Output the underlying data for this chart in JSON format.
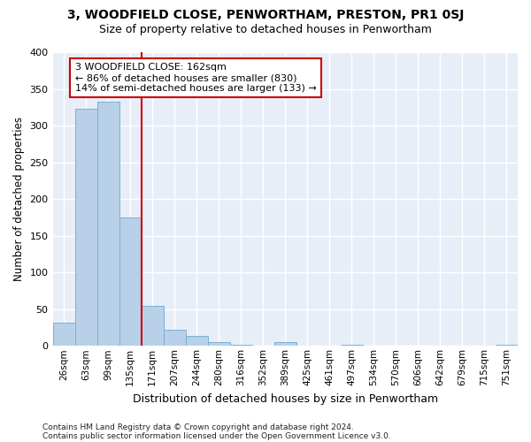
{
  "title": "3, WOODFIELD CLOSE, PENWORTHAM, PRESTON, PR1 0SJ",
  "subtitle": "Size of property relative to detached houses in Penwortham",
  "xlabel": "Distribution of detached houses by size in Penwortham",
  "ylabel": "Number of detached properties",
  "footer1": "Contains HM Land Registry data © Crown copyright and database right 2024.",
  "footer2": "Contains public sector information licensed under the Open Government Licence v3.0.",
  "bar_labels": [
    "26sqm",
    "63sqm",
    "99sqm",
    "135sqm",
    "171sqm",
    "207sqm",
    "244sqm",
    "280sqm",
    "316sqm",
    "352sqm",
    "389sqm",
    "425sqm",
    "461sqm",
    "497sqm",
    "534sqm",
    "570sqm",
    "606sqm",
    "642sqm",
    "679sqm",
    "715sqm",
    "751sqm"
  ],
  "bar_values": [
    32,
    323,
    333,
    175,
    55,
    22,
    13,
    5,
    2,
    0,
    5,
    0,
    0,
    2,
    0,
    0,
    0,
    0,
    0,
    0,
    2
  ],
  "bar_color": "#b8d0e8",
  "bar_edgecolor": "#7bafd4",
  "annotation_line1": "3 WOODFIELD CLOSE: 162sqm",
  "annotation_line2": "← 86% of detached houses are smaller (830)",
  "annotation_line3": "14% of semi-detached houses are larger (133) →",
  "vline_x": 3.5,
  "vline_color": "#cc0000",
  "annotation_box_facecolor": "#ffffff",
  "annotation_box_edgecolor": "#cc0000",
  "background_color": "#e8eef8",
  "grid_color": "#ffffff",
  "fig_facecolor": "#ffffff",
  "ylim": [
    0,
    400
  ],
  "yticks": [
    0,
    50,
    100,
    150,
    200,
    250,
    300,
    350,
    400
  ]
}
